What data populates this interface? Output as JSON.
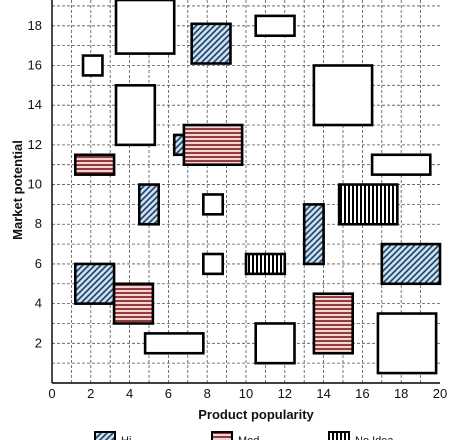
{
  "chart_data": {
    "type": "scatter",
    "title": "",
    "xlabel": "Product popularity",
    "ylabel": "Market potential",
    "xlim": [
      0,
      20
    ],
    "ylim": [
      0,
      19.3
    ],
    "x_ticks": [
      0,
      2,
      4,
      6,
      8,
      10,
      12,
      14,
      16,
      18,
      20
    ],
    "y_ticks": [
      2,
      4,
      6,
      8,
      10,
      12,
      14,
      16,
      18
    ],
    "grid": true,
    "grid_style": "dashed",
    "grid_minor_step": 1,
    "marker": "rectangle",
    "legend_position": "bottom",
    "styles": {
      "plain": {
        "fill": "#ffffff",
        "stroke": "#000000"
      },
      "blue_diagonal": {
        "fill": "#c9dff0",
        "stroke": "#1f3f66",
        "pattern": "diagonal"
      },
      "red_horizontal": {
        "fill": "#e6a9a9",
        "stroke": "#8a2a2a",
        "pattern": "horizontal"
      },
      "black_vertical": {
        "fill": "#ffffff",
        "stroke": "#000000",
        "pattern": "vertical"
      }
    },
    "legend": [
      {
        "style": "blue_diagonal",
        "label": "Hi"
      },
      {
        "style": "red_horizontal",
        "label": "Med"
      },
      {
        "style": "black_vertical",
        "label": "No Idea"
      }
    ],
    "points": [
      {
        "x0": 3.3,
        "x1": 6.3,
        "y0": 16.6,
        "y1": 19.6,
        "style": "plain"
      },
      {
        "x0": 7.2,
        "x1": 9.2,
        "y0": 16.1,
        "y1": 18.1,
        "style": "blue_diagonal"
      },
      {
        "x0": 10.5,
        "x1": 12.5,
        "y0": 17.5,
        "y1": 18.5,
        "style": "plain"
      },
      {
        "x0": 1.6,
        "x1": 2.6,
        "y0": 15.5,
        "y1": 16.5,
        "style": "plain"
      },
      {
        "x0": 13.5,
        "x1": 16.5,
        "y0": 13.0,
        "y1": 16.0,
        "style": "plain"
      },
      {
        "x0": 3.3,
        "x1": 5.3,
        "y0": 12.0,
        "y1": 15.0,
        "style": "plain"
      },
      {
        "x0": 6.3,
        "x1": 7.3,
        "y0": 11.5,
        "y1": 12.5,
        "style": "blue_diagonal"
      },
      {
        "x0": 6.8,
        "x1": 9.8,
        "y0": 11.0,
        "y1": 13.0,
        "style": "red_horizontal"
      },
      {
        "x0": 1.2,
        "x1": 3.2,
        "y0": 10.5,
        "y1": 11.5,
        "style": "red_horizontal"
      },
      {
        "x0": 16.5,
        "x1": 19.5,
        "y0": 10.5,
        "y1": 11.5,
        "style": "plain"
      },
      {
        "x0": 4.5,
        "x1": 5.5,
        "y0": 8.0,
        "y1": 10.0,
        "style": "blue_diagonal"
      },
      {
        "x0": 7.8,
        "x1": 8.8,
        "y0": 8.5,
        "y1": 9.5,
        "style": "plain"
      },
      {
        "x0": 14.8,
        "x1": 17.8,
        "y0": 8.0,
        "y1": 10.0,
        "style": "black_vertical"
      },
      {
        "x0": 13.0,
        "x1": 14.0,
        "y0": 6.0,
        "y1": 9.0,
        "style": "blue_diagonal"
      },
      {
        "x0": 7.8,
        "x1": 8.8,
        "y0": 5.5,
        "y1": 6.5,
        "style": "plain"
      },
      {
        "x0": 10.0,
        "x1": 12.0,
        "y0": 5.5,
        "y1": 6.5,
        "style": "black_vertical"
      },
      {
        "x0": 17.0,
        "x1": 20.0,
        "y0": 5.0,
        "y1": 7.0,
        "style": "blue_diagonal"
      },
      {
        "x0": 1.2,
        "x1": 3.2,
        "y0": 4.0,
        "y1": 6.0,
        "style": "blue_diagonal"
      },
      {
        "x0": 3.2,
        "x1": 5.2,
        "y0": 3.0,
        "y1": 5.0,
        "style": "red_horizontal"
      },
      {
        "x0": 13.5,
        "x1": 15.5,
        "y0": 1.5,
        "y1": 4.5,
        "style": "red_horizontal"
      },
      {
        "x0": 4.8,
        "x1": 7.8,
        "y0": 1.5,
        "y1": 2.5,
        "style": "plain"
      },
      {
        "x0": 10.5,
        "x1": 12.5,
        "y0": 1.0,
        "y1": 3.0,
        "style": "plain"
      },
      {
        "x0": 16.8,
        "x1": 19.8,
        "y0": 0.5,
        "y1": 3.5,
        "style": "plain"
      }
    ]
  }
}
